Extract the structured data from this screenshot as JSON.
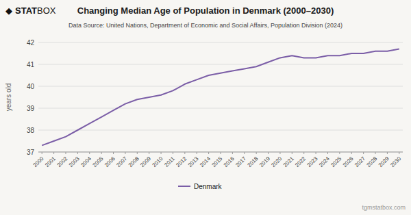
{
  "chart_data": {
    "type": "line",
    "title": "Changing Median Age of Population in Denmark (2000–2030)",
    "subtitle": "Data Source: United Nations, Department of Economic and Social Affairs, Population Division (2024)",
    "y_label": "years old",
    "annotations": [
      "◆",
      "STAT",
      "BOX",
      "tgmstatbox.com"
    ],
    "x": [
      2000,
      2001,
      2002,
      2003,
      2004,
      2005,
      2006,
      2007,
      2008,
      2009,
      2010,
      2011,
      2012,
      2013,
      2014,
      2015,
      2016,
      2017,
      2018,
      2019,
      2020,
      2021,
      2022,
      2023,
      2024,
      2025,
      2026,
      2027,
      2028,
      2029,
      2030
    ],
    "series": [
      {
        "name": "Denmark",
        "color": "#7b5ea7",
        "values": [
          37.3,
          37.5,
          37.7,
          38.0,
          38.3,
          38.6,
          38.9,
          39.2,
          39.4,
          39.5,
          39.6,
          39.8,
          40.1,
          40.3,
          40.5,
          40.6,
          40.7,
          40.8,
          40.9,
          41.1,
          41.3,
          41.4,
          41.3,
          41.3,
          41.4,
          41.4,
          41.5,
          41.5,
          41.6,
          41.6,
          41.7
        ]
      }
    ],
    "xlim": [
      1999.7,
      2030.3
    ],
    "xticks": [
      2000,
      2001,
      2002,
      2003,
      2004,
      2005,
      2006,
      2007,
      2008,
      2009,
      2010,
      2011,
      2012,
      2013,
      2014,
      2015,
      2016,
      2017,
      2018,
      2019,
      2020,
      2021,
      2022,
      2023,
      2024,
      2025,
      2026,
      2027,
      2028,
      2029,
      2030
    ],
    "ylim": [
      37,
      42
    ],
    "yticks": [
      37,
      38,
      39,
      40,
      41,
      42
    ],
    "grid": true,
    "legend": "bottom"
  }
}
